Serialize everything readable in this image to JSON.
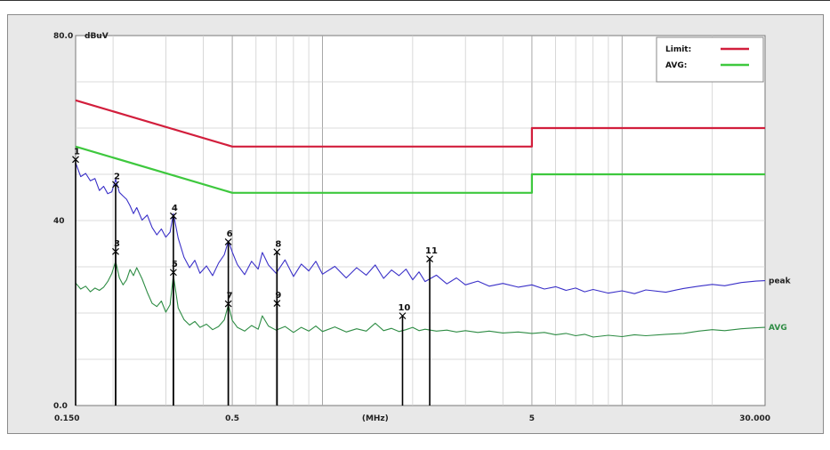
{
  "chart_data": {
    "type": "line",
    "x_scale": "log",
    "xlim": [
      0.15,
      30
    ],
    "ylim": [
      0,
      80
    ],
    "y_unit": "dBuV",
    "x_unit": "(MHz)",
    "y_ticks": [
      {
        "value": 80,
        "label": "80.0"
      },
      {
        "value": 40,
        "label": "40"
      },
      {
        "value": 0,
        "label": "0.0"
      }
    ],
    "x_ticks": [
      {
        "value": 0.15,
        "label": "0.150"
      },
      {
        "value": 0.5,
        "label": "0.5"
      },
      {
        "value": 5,
        "label": "5"
      },
      {
        "value": 30,
        "label": "30.000"
      }
    ],
    "x_unit_position": 1.5,
    "grid": true,
    "legend": {
      "placement": "top-right",
      "entries": [
        {
          "label": "Limit:",
          "color": "#d21e3c"
        },
        {
          "label": "AVG:",
          "color": "#3ec83e"
        }
      ]
    },
    "series": [
      {
        "name": "Limit:",
        "color": "#d21e3c",
        "points": [
          [
            0.15,
            66
          ],
          [
            0.5,
            56
          ],
          [
            5,
            56
          ],
          [
            5,
            60
          ],
          [
            30,
            60
          ]
        ]
      },
      {
        "name": "AVG:",
        "color": "#3ec83e",
        "points": [
          [
            0.15,
            56
          ],
          [
            0.5,
            46
          ],
          [
            5,
            46
          ],
          [
            5,
            50
          ],
          [
            30,
            50
          ]
        ]
      },
      {
        "name": "peak",
        "color": "#3a30c8",
        "points": [
          [
            0.15,
            52.5
          ],
          [
            0.156,
            49.5
          ],
          [
            0.162,
            50.2
          ],
          [
            0.168,
            48.6
          ],
          [
            0.174,
            49.1
          ],
          [
            0.18,
            46.5
          ],
          [
            0.186,
            47.4
          ],
          [
            0.192,
            45.8
          ],
          [
            0.198,
            46.2
          ],
          [
            0.204,
            48.9
          ],
          [
            0.21,
            46.1
          ],
          [
            0.216,
            45.3
          ],
          [
            0.222,
            44.6
          ],
          [
            0.228,
            43.2
          ],
          [
            0.234,
            41.5
          ],
          [
            0.24,
            42.8
          ],
          [
            0.25,
            40.1
          ],
          [
            0.26,
            41.2
          ],
          [
            0.27,
            38.5
          ],
          [
            0.28,
            36.9
          ],
          [
            0.29,
            38.2
          ],
          [
            0.3,
            36.4
          ],
          [
            0.31,
            37.5
          ],
          [
            0.318,
            41.5
          ],
          [
            0.33,
            36.2
          ],
          [
            0.345,
            32.1
          ],
          [
            0.36,
            29.8
          ],
          [
            0.375,
            31.4
          ],
          [
            0.39,
            28.6
          ],
          [
            0.41,
            30.2
          ],
          [
            0.43,
            28.1
          ],
          [
            0.45,
            30.8
          ],
          [
            0.47,
            32.6
          ],
          [
            0.485,
            35.6
          ],
          [
            0.5,
            33.2
          ],
          [
            0.52,
            30.5
          ],
          [
            0.55,
            28.3
          ],
          [
            0.58,
            31.2
          ],
          [
            0.61,
            29.5
          ],
          [
            0.63,
            33.1
          ],
          [
            0.66,
            30.4
          ],
          [
            0.7,
            28.6
          ],
          [
            0.75,
            31.5
          ],
          [
            0.8,
            27.9
          ],
          [
            0.85,
            30.6
          ],
          [
            0.9,
            29.1
          ],
          [
            0.95,
            31.2
          ],
          [
            1.0,
            28.4
          ],
          [
            1.1,
            30.1
          ],
          [
            1.2,
            27.6
          ],
          [
            1.3,
            29.8
          ],
          [
            1.4,
            28.2
          ],
          [
            1.5,
            30.4
          ],
          [
            1.6,
            27.5
          ],
          [
            1.7,
            29.3
          ],
          [
            1.8,
            28.1
          ],
          [
            1.9,
            29.5
          ],
          [
            2.0,
            27.2
          ],
          [
            2.1,
            28.9
          ],
          [
            2.2,
            26.8
          ],
          [
            2.4,
            28.2
          ],
          [
            2.6,
            26.3
          ],
          [
            2.8,
            27.6
          ],
          [
            3.0,
            26.1
          ],
          [
            3.3,
            26.9
          ],
          [
            3.6,
            25.8
          ],
          [
            4.0,
            26.4
          ],
          [
            4.5,
            25.6
          ],
          [
            5.0,
            26.1
          ],
          [
            5.5,
            25.2
          ],
          [
            6.0,
            25.7
          ],
          [
            6.5,
            24.9
          ],
          [
            7.0,
            25.4
          ],
          [
            7.5,
            24.6
          ],
          [
            8.0,
            25.1
          ],
          [
            9.0,
            24.3
          ],
          [
            10.0,
            24.8
          ],
          [
            11.0,
            24.2
          ],
          [
            12.0,
            25.0
          ],
          [
            14.0,
            24.5
          ],
          [
            16.0,
            25.3
          ],
          [
            18.0,
            25.8
          ],
          [
            20.0,
            26.2
          ],
          [
            22.0,
            25.9
          ],
          [
            25.0,
            26.6
          ],
          [
            28.0,
            26.9
          ],
          [
            30.0,
            27.0
          ]
        ]
      },
      {
        "name": "AVG",
        "color": "#2e8c44",
        "points": [
          [
            0.15,
            26.5
          ],
          [
            0.156,
            25.2
          ],
          [
            0.162,
            25.8
          ],
          [
            0.168,
            24.6
          ],
          [
            0.174,
            25.4
          ],
          [
            0.18,
            24.9
          ],
          [
            0.186,
            25.6
          ],
          [
            0.192,
            26.8
          ],
          [
            0.198,
            28.5
          ],
          [
            0.204,
            31.2
          ],
          [
            0.21,
            27.6
          ],
          [
            0.216,
            26.1
          ],
          [
            0.222,
            27.2
          ],
          [
            0.228,
            29.4
          ],
          [
            0.234,
            28.1
          ],
          [
            0.24,
            29.8
          ],
          [
            0.25,
            27.4
          ],
          [
            0.26,
            24.5
          ],
          [
            0.27,
            22.1
          ],
          [
            0.28,
            21.4
          ],
          [
            0.29,
            22.6
          ],
          [
            0.3,
            20.2
          ],
          [
            0.31,
            21.8
          ],
          [
            0.318,
            28.2
          ],
          [
            0.33,
            21.1
          ],
          [
            0.345,
            18.6
          ],
          [
            0.36,
            17.4
          ],
          [
            0.375,
            18.2
          ],
          [
            0.39,
            16.9
          ],
          [
            0.41,
            17.6
          ],
          [
            0.43,
            16.4
          ],
          [
            0.45,
            17.1
          ],
          [
            0.47,
            18.5
          ],
          [
            0.485,
            21.8
          ],
          [
            0.5,
            18.4
          ],
          [
            0.52,
            16.9
          ],
          [
            0.55,
            16.1
          ],
          [
            0.58,
            17.3
          ],
          [
            0.61,
            16.5
          ],
          [
            0.63,
            19.4
          ],
          [
            0.66,
            17.2
          ],
          [
            0.7,
            16.3
          ],
          [
            0.75,
            17.1
          ],
          [
            0.8,
            15.8
          ],
          [
            0.85,
            16.9
          ],
          [
            0.9,
            16.1
          ],
          [
            0.95,
            17.2
          ],
          [
            1.0,
            16.0
          ],
          [
            1.1,
            17.0
          ],
          [
            1.2,
            15.9
          ],
          [
            1.3,
            16.6
          ],
          [
            1.4,
            16.1
          ],
          [
            1.5,
            17.8
          ],
          [
            1.6,
            16.2
          ],
          [
            1.7,
            16.7
          ],
          [
            1.8,
            16.0
          ],
          [
            1.9,
            16.4
          ],
          [
            2.0,
            16.9
          ],
          [
            2.1,
            16.2
          ],
          [
            2.2,
            16.5
          ],
          [
            2.4,
            16.1
          ],
          [
            2.6,
            16.3
          ],
          [
            2.8,
            15.9
          ],
          [
            3.0,
            16.2
          ],
          [
            3.3,
            15.8
          ],
          [
            3.6,
            16.1
          ],
          [
            4.0,
            15.7
          ],
          [
            4.5,
            15.9
          ],
          [
            5.0,
            15.6
          ],
          [
            5.5,
            15.8
          ],
          [
            6.0,
            15.3
          ],
          [
            6.5,
            15.6
          ],
          [
            7.0,
            15.1
          ],
          [
            7.5,
            15.4
          ],
          [
            8.0,
            14.8
          ],
          [
            9.0,
            15.2
          ],
          [
            10.0,
            14.9
          ],
          [
            11.0,
            15.3
          ],
          [
            12.0,
            15.1
          ],
          [
            14.0,
            15.4
          ],
          [
            16.0,
            15.6
          ],
          [
            18.0,
            16.1
          ],
          [
            20.0,
            16.4
          ],
          [
            22.0,
            16.2
          ],
          [
            25.0,
            16.6
          ],
          [
            28.0,
            16.8
          ],
          [
            30.0,
            16.9
          ]
        ]
      }
    ],
    "series_labels": [
      "peak",
      "AVG"
    ],
    "markers": [
      {
        "label": "1",
        "x": 0.15,
        "y": 53.2
      },
      {
        "label": "2",
        "x": 0.204,
        "y": 47.8
      },
      {
        "label": "3",
        "x": 0.204,
        "y": 33.3
      },
      {
        "label": "4",
        "x": 0.318,
        "y": 41.0
      },
      {
        "label": "5",
        "x": 0.318,
        "y": 28.8
      },
      {
        "label": "6",
        "x": 0.485,
        "y": 35.4
      },
      {
        "label": "7",
        "x": 0.485,
        "y": 22.0
      },
      {
        "label": "8",
        "x": 0.705,
        "y": 33.2
      },
      {
        "label": "9",
        "x": 0.705,
        "y": 22.1
      },
      {
        "label": "10",
        "x": 1.85,
        "y": 19.4
      },
      {
        "label": "11",
        "x": 2.28,
        "y": 31.7
      }
    ]
  }
}
